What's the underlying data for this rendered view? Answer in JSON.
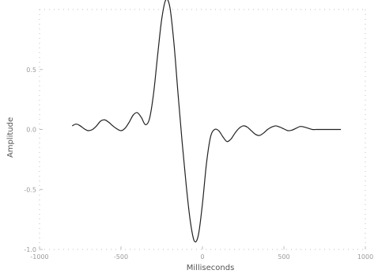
{
  "chart_data": {
    "type": "line",
    "title": "",
    "xlabel": "Milliseconds",
    "ylabel": "Amplitude",
    "xlim": [
      -1000,
      1000
    ],
    "ylim": [
      -1,
      1
    ],
    "x_ticks": [
      -1000,
      -500,
      0,
      500,
      1000
    ],
    "x_tick_labels": [
      "-1000",
      "-500",
      "0",
      "500",
      "1000"
    ],
    "y_ticks": [
      -1,
      -0.5,
      0,
      0.5
    ],
    "y_tick_labels": [
      "-1.0",
      "-0.5",
      "0.0",
      "0.5"
    ],
    "grid": false,
    "series": [
      {
        "name": "",
        "color": "#222222",
        "x": [
          -800,
          -775,
          -750,
          -725,
          -700,
          -675,
          -650,
          -625,
          -600,
          -575,
          -550,
          -525,
          -500,
          -475,
          -450,
          -425,
          -400,
          -375,
          -350,
          -325,
          -300,
          -275,
          -250,
          -225,
          -200,
          -175,
          -150,
          -125,
          -100,
          -75,
          -50,
          -25,
          0,
          25,
          50,
          75,
          100,
          125,
          150,
          175,
          200,
          225,
          250,
          275,
          300,
          325,
          350,
          375,
          400,
          425,
          450,
          475,
          500,
          525,
          550,
          575,
          600,
          625,
          650,
          675,
          700,
          725,
          750,
          775,
          800,
          825,
          850
        ],
        "y": [
          0.03,
          0.045,
          0.03,
          0.005,
          -0.01,
          0,
          0.03,
          0.07,
          0.08,
          0.06,
          0.03,
          0.005,
          -0.01,
          0.01,
          0.06,
          0.12,
          0.14,
          0.1,
          0.04,
          0.09,
          0.3,
          0.62,
          0.92,
          1.08,
          1.02,
          0.72,
          0.3,
          -0.1,
          -0.46,
          -0.76,
          -0.93,
          -0.88,
          -0.62,
          -0.28,
          -0.06,
          0.0,
          -0.01,
          -0.06,
          -0.1,
          -0.08,
          -0.03,
          0.01,
          0.03,
          0.02,
          -0.01,
          -0.04,
          -0.05,
          -0.03,
          0.0,
          0.02,
          0.03,
          0.02,
          0.005,
          -0.01,
          -0.005,
          0.01,
          0.025,
          0.02,
          0.01,
          0.0,
          0.0,
          0.0,
          0.0,
          0.0,
          0.0,
          0.0,
          0.0
        ]
      }
    ]
  }
}
